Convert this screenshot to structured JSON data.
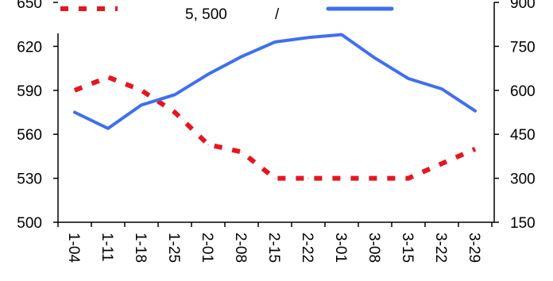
{
  "chart_data": {
    "type": "line",
    "categories": [
      "1-04",
      "1-11",
      "1-18",
      "1-25",
      "2-01",
      "2-08",
      "2-15",
      "2-22",
      "3-01",
      "3-08",
      "3-15",
      "3-22",
      "3-29"
    ],
    "y_left": {
      "range": [
        500,
        650
      ],
      "ticks": [
        "500",
        "530",
        "560",
        "590",
        "620",
        "650"
      ]
    },
    "y_right": {
      "range": [
        150,
        900
      ],
      "ticks": [
        "150",
        "300",
        "450",
        "600",
        "750",
        "900"
      ]
    },
    "legend": {
      "center_text": "5, 500",
      "separator": "/"
    },
    "series": [
      {
        "axis": "left",
        "style": "dotted",
        "color": "#e8141e",
        "values": [
          590,
          599,
          590,
          575,
          553,
          548,
          530,
          530,
          530,
          530,
          530,
          540,
          550
        ]
      },
      {
        "axis": "right",
        "style": "solid",
        "color": "#3f6ff0",
        "values": [
          525,
          470,
          550,
          585,
          655,
          715,
          765,
          780,
          790,
          710,
          640,
          605,
          530
        ]
      }
    ]
  }
}
